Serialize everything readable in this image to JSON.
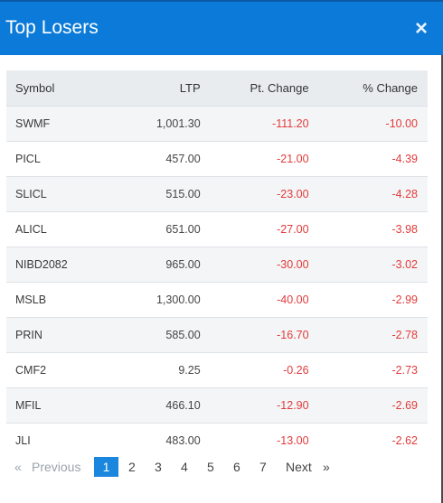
{
  "dialog": {
    "title": "Top Losers",
    "close_glyph": "×"
  },
  "table": {
    "headers": [
      "Symbol",
      "LTP",
      "Pt. Change",
      "% Change"
    ],
    "rows": [
      [
        "SWMF",
        "1,001.30",
        "-111.20",
        "-10.00"
      ],
      [
        "PICL",
        "457.00",
        "-21.00",
        "-4.39"
      ],
      [
        "SLICL",
        "515.00",
        "-23.00",
        "-4.28"
      ],
      [
        "ALICL",
        "651.00",
        "-27.00",
        "-3.98"
      ],
      [
        "NIBD2082",
        "965.00",
        "-30.00",
        "-3.02"
      ],
      [
        "MSLB",
        "1,300.00",
        "-40.00",
        "-2.99"
      ],
      [
        "PRIN",
        "585.00",
        "-16.70",
        "-2.78"
      ],
      [
        "CMF2",
        "9.25",
        "-0.26",
        "-2.73"
      ],
      [
        "MFIL",
        "466.10",
        "-12.90",
        "-2.69"
      ],
      [
        "JLI",
        "483.00",
        "-13.00",
        "-2.62"
      ]
    ]
  },
  "pagination": {
    "first_glyph": "«",
    "previous": "Previous",
    "pages": [
      "1",
      "2",
      "3",
      "4",
      "5",
      "6",
      "7"
    ],
    "active_page": "1",
    "next": "Next",
    "last_glyph": "»"
  },
  "colors": {
    "header_bg": "#0b7ad8",
    "negative": "#e23b3b",
    "active_page": "#1a86dd"
  }
}
